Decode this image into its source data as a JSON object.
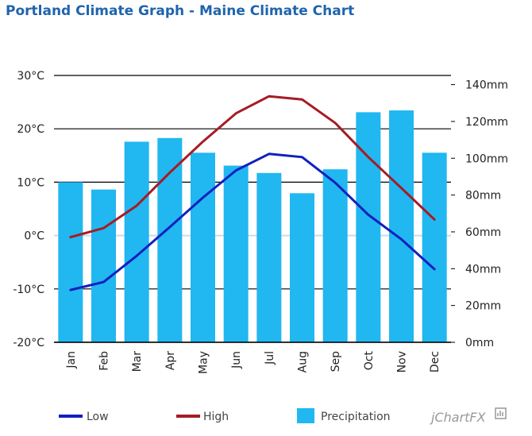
{
  "title": "Portland Climate Graph - Maine Climate Chart",
  "chart_data": {
    "type": "bar",
    "categories": [
      "Jan",
      "Feb",
      "Mar",
      "Apr",
      "May",
      "Jun",
      "Jul",
      "Aug",
      "Sep",
      "Oct",
      "Nov",
      "Dec"
    ],
    "series": [
      {
        "name": "Low",
        "type": "line",
        "axis": "left",
        "color": "#1020c0",
        "values": [
          -10.2,
          -8.7,
          -3.8,
          1.6,
          7.1,
          12.2,
          15.3,
          14.7,
          9.9,
          3.9,
          -0.7,
          -6.3
        ]
      },
      {
        "name": "High",
        "type": "line",
        "axis": "left",
        "color": "#a51c24",
        "values": [
          -0.3,
          1.4,
          5.6,
          11.8,
          17.6,
          22.9,
          26.1,
          25.5,
          21.1,
          14.7,
          8.9,
          3.0
        ]
      },
      {
        "name": "Precipitation",
        "type": "bar",
        "axis": "right",
        "color": "#21b7f0",
        "values": [
          87,
          83,
          109,
          111,
          103,
          96,
          92,
          81,
          94,
          125,
          126,
          103
        ]
      }
    ],
    "y_left": {
      "label": "",
      "ylim": [
        -20,
        30
      ],
      "ticks": [
        -20,
        -10,
        0,
        10,
        20,
        30
      ],
      "tick_labels": [
        "-20°C",
        "-10°C",
        "0°C",
        "10°C",
        "20°C",
        "30°C"
      ]
    },
    "y_right": {
      "label": "",
      "ylim": [
        0,
        145
      ],
      "ticks": [
        0,
        20,
        40,
        60,
        80,
        100,
        120,
        140
      ],
      "tick_labels": [
        "0mm",
        "20mm",
        "40mm",
        "60mm",
        "80mm",
        "100mm",
        "120mm",
        "140mm"
      ]
    },
    "legend": [
      "Low",
      "High",
      "Precipitation"
    ],
    "legend_position": "bottom",
    "gridlines": true
  },
  "branding": {
    "text": "jChartFX"
  }
}
